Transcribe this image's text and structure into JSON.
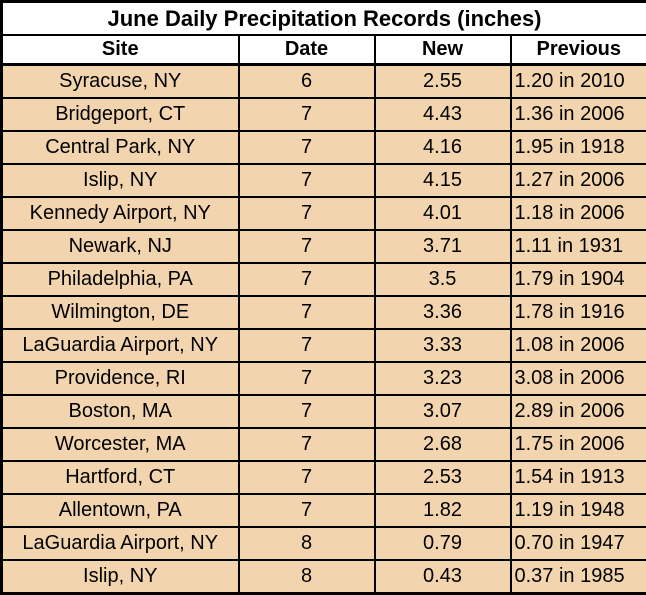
{
  "colors": {
    "row_bg": "#f2d5ae",
    "header_bg": "#ffffff",
    "border": "#000000",
    "text": "#000000"
  },
  "chart_data": {
    "type": "table",
    "title": "June Daily Precipitation Records (inches)",
    "columns": [
      "Site",
      "Date",
      "New",
      "Previous"
    ],
    "rows": [
      [
        "Syracuse, NY",
        "6",
        "2.55",
        "1.20 in 2010"
      ],
      [
        "Bridgeport, CT",
        "7",
        "4.43",
        "1.36 in 2006"
      ],
      [
        "Central Park, NY",
        "7",
        "4.16",
        "1.95 in 1918"
      ],
      [
        "Islip, NY",
        "7",
        "4.15",
        "1.27 in 2006"
      ],
      [
        "Kennedy Airport, NY",
        "7",
        "4.01",
        "1.18 in 2006"
      ],
      [
        "Newark, NJ",
        "7",
        "3.71",
        "1.11 in 1931"
      ],
      [
        "Philadelphia, PA",
        "7",
        "3.5",
        "1.79 in 1904"
      ],
      [
        "Wilmington, DE",
        "7",
        "3.36",
        "1.78 in 1916"
      ],
      [
        "LaGuardia Airport, NY",
        "7",
        "3.33",
        "1.08 in 2006"
      ],
      [
        "Providence, RI",
        "7",
        "3.23",
        "3.08 in 2006"
      ],
      [
        "Boston, MA",
        "7",
        "3.07",
        "2.89 in 2006"
      ],
      [
        "Worcester, MA",
        "7",
        "2.68",
        "1.75 in 2006"
      ],
      [
        "Hartford, CT",
        "7",
        "2.53",
        "1.54 in 1913"
      ],
      [
        "Allentown, PA",
        "7",
        "1.82",
        "1.19 in 1948"
      ],
      [
        "LaGuardia Airport, NY",
        "8",
        "0.79",
        "0.70 in 1947"
      ],
      [
        "Islip, NY",
        "8",
        "0.43",
        "0.37 in 1985"
      ]
    ],
    "layout": {
      "grid": true,
      "title_position": "top-center",
      "value_alignment": {
        "Site": "center",
        "Date": "center",
        "New": "center",
        "Previous": "left"
      }
    }
  }
}
